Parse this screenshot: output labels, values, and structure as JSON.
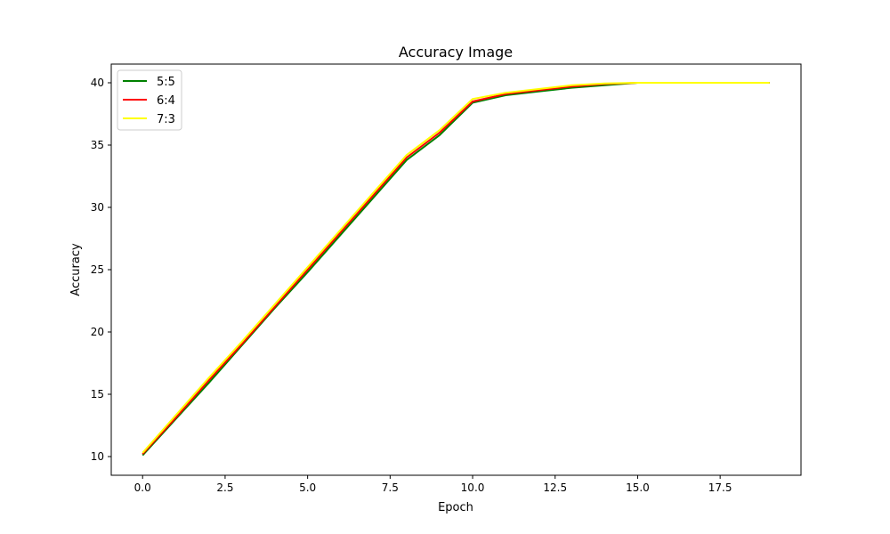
{
  "chart_data": {
    "type": "line",
    "title": "Accuracy Image",
    "xlabel": "Epoch",
    "ylabel": "Accuracy",
    "xlim": [
      -0.95,
      19.95
    ],
    "ylim": [
      8.5,
      41.5
    ],
    "xticks": [
      0.0,
      2.5,
      5.0,
      7.5,
      10.0,
      12.5,
      15.0,
      17.5
    ],
    "xtick_labels": [
      "0.0",
      "2.5",
      "5.0",
      "7.5",
      "10.0",
      "12.5",
      "15.0",
      "17.5"
    ],
    "yticks": [
      10,
      15,
      20,
      25,
      30,
      35,
      40
    ],
    "ytick_labels": [
      "10",
      "15",
      "20",
      "25",
      "30",
      "35",
      "40"
    ],
    "grid": false,
    "legend_position": "top-left",
    "x": [
      0,
      1,
      2,
      3,
      4,
      5,
      6,
      7,
      8,
      9,
      10,
      11,
      12,
      13,
      14,
      15,
      16,
      17,
      18,
      19
    ],
    "series": [
      {
        "name": "5:5",
        "color": "#008000",
        "values": [
          10.1,
          13.0,
          15.9,
          18.9,
          21.9,
          24.8,
          27.8,
          30.8,
          33.8,
          35.8,
          38.4,
          39.0,
          39.3,
          39.6,
          39.8,
          40.0,
          40.0,
          40.0,
          40.0,
          40.0
        ]
      },
      {
        "name": "6:4",
        "color": "#ff0000",
        "values": [
          10.2,
          13.1,
          16.1,
          19.0,
          22.0,
          25.0,
          28.0,
          31.0,
          34.0,
          36.0,
          38.5,
          39.1,
          39.4,
          39.7,
          39.9,
          40.0,
          40.0,
          40.0,
          40.0,
          40.0
        ]
      },
      {
        "name": "7:3",
        "color": "#ffff00",
        "values": [
          10.3,
          13.3,
          16.3,
          19.2,
          22.2,
          25.2,
          28.2,
          31.2,
          34.2,
          36.2,
          38.7,
          39.2,
          39.5,
          39.8,
          39.95,
          40.0,
          40.0,
          40.0,
          40.0,
          40.0
        ]
      }
    ]
  }
}
